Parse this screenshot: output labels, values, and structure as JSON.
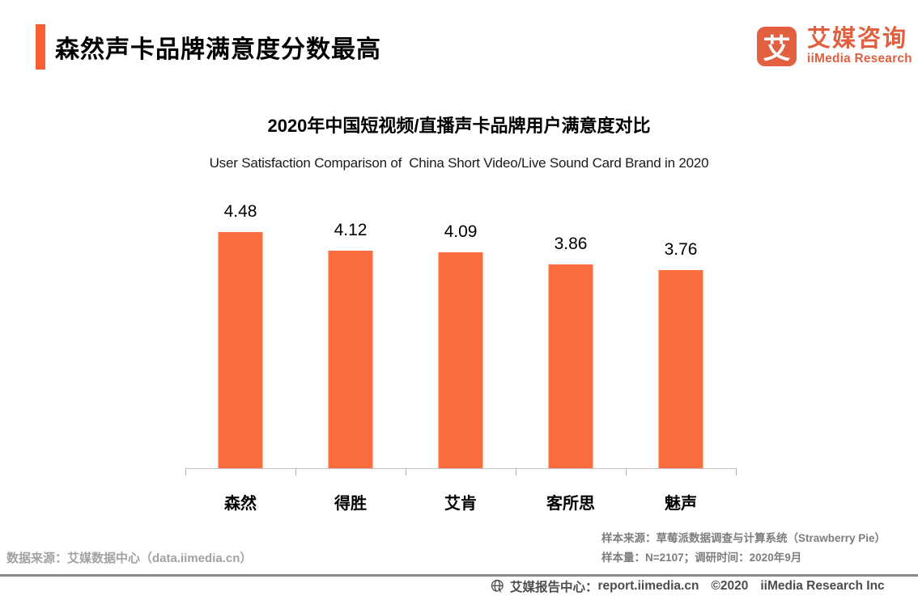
{
  "theme": {
    "accent": "#f75f32",
    "bar_orange": "#fb6c3f",
    "logo_orange": "#e06040",
    "axis_gray": "#c4c4c4",
    "footnote_gray": "#7d7d7d",
    "footer_gray": "#4d4d4d"
  },
  "header": {
    "title": "森然声卡品牌满意度分数最高"
  },
  "logo": {
    "mark": "艾",
    "name_cn": "艾媒咨询",
    "name_en": "iiMedia Research"
  },
  "chart_data": {
    "type": "bar",
    "title": "2020年中国短视频/直播声卡品牌用户满意度对比",
    "subtitle": "User Satisfaction Comparison of  China Short Video/Live Sound Card Brand in 2020",
    "categories": [
      "森然",
      "得胜",
      "艾肯",
      "客所思",
      "魅声"
    ],
    "values": [
      4.48,
      4.12,
      4.09,
      3.86,
      3.76
    ],
    "value_labels": [
      "4.48",
      "4.12",
      "4.09",
      "3.86",
      "3.76"
    ],
    "bar_color": "#fb6c3f",
    "xlabel": "",
    "ylabel": "",
    "ylim": [
      0,
      5
    ],
    "grid": false,
    "legend": "none"
  },
  "footnotes": {
    "data_source": "数据来源：艾媒数据中心（data.iimedia.cn）",
    "sample_source": "样本来源：草莓派数据调查与计算系统（Strawberry Pie）",
    "sample_info": "样本量：N=2107；调研时间：2020年9月"
  },
  "footer": {
    "label": "艾媒报告中心：",
    "url": "report.iimedia.cn",
    "copyright": "©2020",
    "company": "iiMedia Research Inc"
  }
}
